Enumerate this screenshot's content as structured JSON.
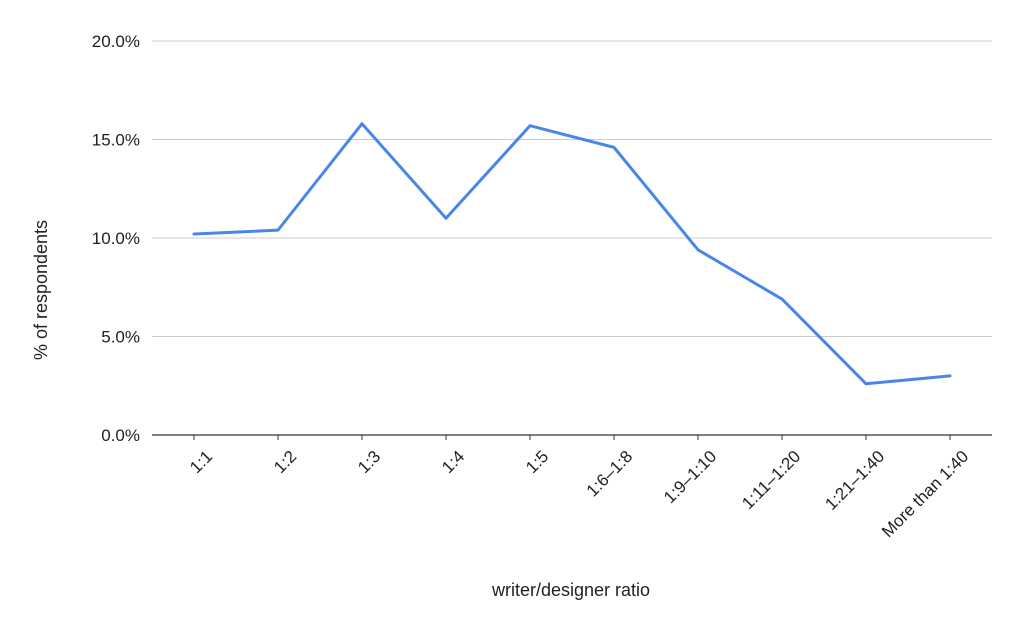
{
  "chart_data": {
    "type": "line",
    "title": "",
    "xlabel": "writer/designer ratio",
    "ylabel": "% of respondents",
    "categories": [
      "1:1",
      "1:2",
      "1:3",
      "1:4",
      "1:5",
      "1:6–1:8",
      "1:9–1:10",
      "1:11–1:20",
      "1:21–1:40",
      "More than 1:40"
    ],
    "series": [
      {
        "values": [
          10.2,
          10.4,
          15.8,
          11.0,
          15.7,
          14.6,
          9.4,
          6.9,
          2.6,
          3.0
        ],
        "color": "#4a86e8"
      }
    ],
    "ylim": [
      0,
      20
    ],
    "yticks": [
      0,
      5,
      10,
      15,
      20
    ],
    "ytick_labels": [
      "0.0%",
      "5.0%",
      "10.0%",
      "15.0%",
      "20.0%"
    ],
    "grid": true,
    "legend": "none"
  }
}
